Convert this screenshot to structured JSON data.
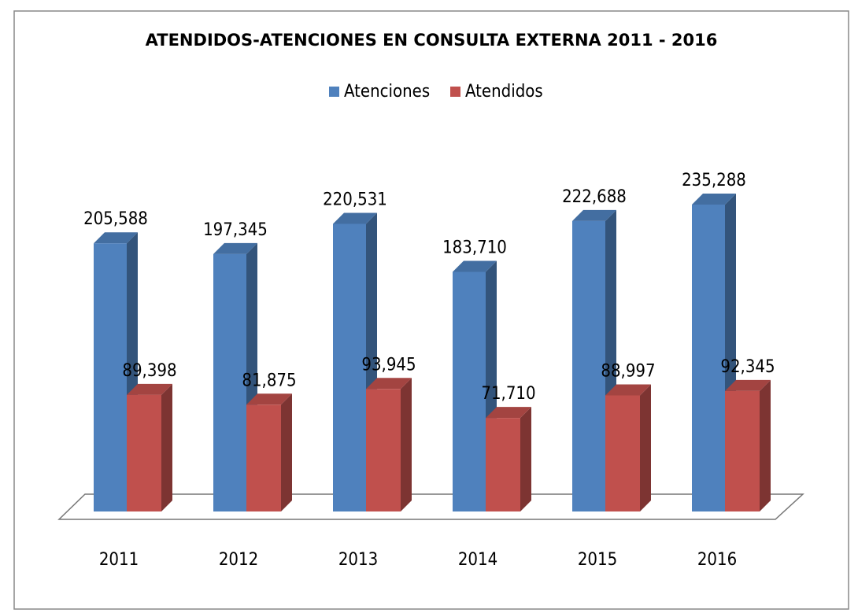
{
  "chart_data": {
    "type": "bar3d",
    "title": "ATENDIDOS-ATENCIONES EN CONSULTA EXTERNA 2011 - 2016",
    "categories": [
      "2011",
      "2012",
      "2013",
      "2014",
      "2015",
      "2016"
    ],
    "series": [
      {
        "name": "Atenciones",
        "color": "#4f81bd",
        "values": [
          205588,
          197345,
          220531,
          183710,
          222688,
          235288
        ],
        "value_labels": [
          "205,588",
          "197,345",
          "220,531",
          "183,710",
          "222,688",
          "235,288"
        ]
      },
      {
        "name": "Atendidos",
        "color": "#c0504d",
        "values": [
          89398,
          81875,
          93945,
          71710,
          88997,
          92345
        ],
        "value_labels": [
          "89,398",
          "81,875",
          "93,945",
          "71,710",
          "88,997",
          "92,345"
        ]
      }
    ],
    "legend": "top"
  }
}
